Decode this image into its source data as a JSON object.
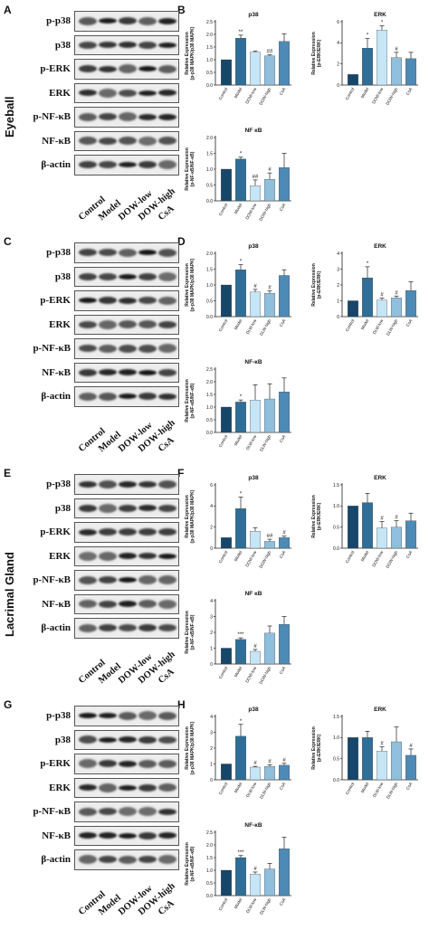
{
  "panels": [
    {
      "blot_letter": "A",
      "chart_letter": "B",
      "side_label": "Eyeball",
      "blot_rows": [
        "p-p38",
        "p38",
        "p-ERK",
        "ERK",
        "p-NF-κB",
        "NF-κB",
        "β-actin"
      ],
      "lanes": [
        "Control",
        "Model",
        "DOW-low",
        "DOW-high",
        "CsA"
      ]
    },
    {
      "blot_letter": "C",
      "chart_letter": "D",
      "side_label": "",
      "blot_rows": [
        "p-p38",
        "p38",
        "p-ERK",
        "ERK",
        "p-NF-κB",
        "NF-κB",
        "β-actin"
      ],
      "lanes": [
        "Control",
        "Model",
        "DOW-low",
        "DOW-high",
        "CsA"
      ]
    },
    {
      "blot_letter": "E",
      "chart_letter": "F",
      "side_label": "Lacrimal Gland",
      "blot_rows": [
        "p-p38",
        "p38",
        "p-ERK",
        "ERK",
        "p-NF-κB",
        "NF-κB",
        "β-actin"
      ],
      "lanes": [
        "Control",
        "Model",
        "DOW-low",
        "DOW-high",
        "CsA"
      ]
    },
    {
      "blot_letter": "G",
      "chart_letter": "H",
      "side_label": "",
      "blot_rows": [
        "p-p38",
        "p38",
        "p-ERK",
        "ERK",
        "p-NF-κB",
        "NF-κB",
        "β-actin"
      ],
      "lanes": [
        "Control",
        "Model",
        "DOW-low",
        "DOW-high",
        "CsA"
      ]
    }
  ],
  "colors": {
    "control": "#16476b",
    "model": "#2f6e96",
    "low": "#c6e5f6",
    "high": "#8fbfdc",
    "csa": "#4d8ab5"
  },
  "chart_data": [
    {
      "type": "bar",
      "panel": "B",
      "title": "p38",
      "categories": [
        "Control",
        "Model",
        "DOW-low",
        "DOW-high",
        "CsA"
      ],
      "values": [
        1.0,
        1.85,
        1.3,
        1.15,
        1.72
      ],
      "errors": [
        0.0,
        0.12,
        0.04,
        0.04,
        0.3
      ],
      "annotations": [
        "",
        "**",
        "",
        "##",
        ""
      ],
      "ylabel": "Relative Expression\n(p-p38 MAPK/p38 MAPK)",
      "ylim": [
        0.0,
        2.5
      ],
      "yticks": [
        0.0,
        0.5,
        1.0,
        1.5,
        2.0,
        2.5
      ]
    },
    {
      "type": "bar",
      "panel": "B",
      "title": "ERK",
      "categories": [
        "Control",
        "Model",
        "DOW-low",
        "DOW-high",
        "CsA"
      ],
      "values": [
        1.0,
        3.5,
        5.2,
        2.6,
        2.5
      ],
      "errors": [
        0.0,
        0.9,
        0.4,
        0.5,
        0.6
      ],
      "annotations": [
        "",
        "*",
        "*",
        "#",
        ""
      ],
      "ylabel": "Relative Expression\n(p-ERK/ERK)",
      "ylim": [
        0,
        6
      ],
      "yticks": [
        0,
        2,
        4,
        6
      ]
    },
    {
      "type": "bar",
      "panel": "B",
      "title": "NF κB",
      "categories": [
        "Control",
        "Model",
        "DOW-low",
        "DOW-high",
        "CsA"
      ],
      "values": [
        1.0,
        1.32,
        0.48,
        0.68,
        1.05
      ],
      "errors": [
        0.0,
        0.06,
        0.18,
        0.2,
        0.45
      ],
      "annotations": [
        "",
        "*",
        "##",
        "#",
        ""
      ],
      "ylabel": "Relative Expression\n(p-NF-κB/NF-κB)",
      "ylim": [
        0.0,
        2.0
      ],
      "yticks": [
        0.0,
        0.5,
        1.0,
        1.5,
        2.0
      ]
    },
    {
      "type": "bar",
      "panel": "D",
      "title": "p38",
      "categories": [
        "Control",
        "Model",
        "DLW-low",
        "DLW-high",
        "CsA"
      ],
      "values": [
        1.0,
        1.48,
        0.78,
        0.74,
        1.3
      ],
      "errors": [
        0.0,
        0.16,
        0.08,
        0.08,
        0.18
      ],
      "annotations": [
        "",
        "*",
        "#",
        "#",
        ""
      ],
      "ylabel": "Relative Expression\n(p-p38 MAPK/p38 MAPK)",
      "ylim": [
        0.0,
        2.0
      ],
      "yticks": [
        0.0,
        0.5,
        1.0,
        1.5,
        2.0
      ]
    },
    {
      "type": "bar",
      "panel": "D",
      "title": "ERK",
      "categories": [
        "Control",
        "Model",
        "DLW-low",
        "DLW-high",
        "CsA"
      ],
      "values": [
        1.0,
        2.45,
        1.05,
        1.18,
        1.65
      ],
      "errors": [
        0.0,
        0.7,
        0.12,
        0.12,
        0.55
      ],
      "annotations": [
        "",
        "*",
        "#",
        "#",
        ""
      ],
      "ylabel": "Relative Expression\n(p-ERK/ERK)",
      "ylim": [
        0,
        4
      ],
      "yticks": [
        0,
        1,
        2,
        3,
        4
      ]
    },
    {
      "type": "bar",
      "panel": "D",
      "title": "NF-κB",
      "categories": [
        "Control",
        "Model",
        "DLW-low",
        "DLW-high",
        "CsA"
      ],
      "values": [
        1.0,
        1.2,
        1.28,
        1.32,
        1.6
      ],
      "errors": [
        0.0,
        0.08,
        0.6,
        0.6,
        0.55
      ],
      "annotations": [
        "",
        "*",
        "",
        "",
        ""
      ],
      "ylabel": "Relative Expression\n(p-NF-κB/NF-κB)",
      "ylim": [
        0.0,
        2.5
      ],
      "yticks": [
        0.0,
        0.5,
        1.0,
        1.5,
        2.0,
        2.5
      ]
    },
    {
      "type": "bar",
      "panel": "F",
      "title": "p38",
      "categories": [
        "Control",
        "Model",
        "DOW-low",
        "DOW-high",
        "CsA"
      ],
      "values": [
        1.0,
        3.75,
        1.6,
        0.65,
        1.0
      ],
      "errors": [
        0.0,
        1.1,
        0.35,
        0.2,
        0.15
      ],
      "annotations": [
        "",
        "*",
        "",
        "##",
        "#"
      ],
      "ylabel": "Relative Expression\n(p-p38 MAPK/p38 MAPK)",
      "ylim": [
        0,
        6
      ],
      "yticks": [
        0,
        2,
        4,
        6
      ]
    },
    {
      "type": "bar",
      "panel": "F",
      "title": "ERK",
      "categories": [
        "Control",
        "Model",
        "DOW-low",
        "DOW-high",
        "CsA"
      ],
      "values": [
        1.0,
        1.08,
        0.48,
        0.5,
        0.65
      ],
      "errors": [
        0.0,
        0.22,
        0.15,
        0.15,
        0.18
      ],
      "annotations": [
        "",
        "",
        "#",
        "#",
        ""
      ],
      "ylabel": "Relative Expression\n(p-ERK/ERK)",
      "ylim": [
        0.0,
        1.5
      ],
      "yticks": [
        0.0,
        0.5,
        1.0,
        1.5
      ]
    },
    {
      "type": "bar",
      "panel": "F",
      "title": "NF κB",
      "categories": [
        "Control",
        "Model",
        "DOW-low",
        "DOW-high",
        "CsA"
      ],
      "values": [
        1.0,
        1.55,
        0.8,
        1.95,
        2.5
      ],
      "errors": [
        0.0,
        0.1,
        0.12,
        0.45,
        0.5
      ],
      "annotations": [
        "",
        "***",
        "#",
        "",
        ""
      ],
      "ylabel": "Relative Expression\n(p-NF-κB/NF-κB)",
      "ylim": [
        0,
        4
      ],
      "yticks": [
        0,
        1,
        2,
        3,
        4
      ]
    },
    {
      "type": "bar",
      "panel": "H",
      "title": "p38",
      "categories": [
        "Control",
        "Model",
        "DLW-low",
        "DLW-high",
        "CsA"
      ],
      "values": [
        1.0,
        2.75,
        0.8,
        0.85,
        0.92
      ],
      "errors": [
        0.0,
        0.75,
        0.05,
        0.1,
        0.12
      ],
      "annotations": [
        "",
        "*",
        "#",
        "#",
        "#"
      ],
      "ylabel": "Relative Expression\n(p-p38 MAPK/p38 MAPK)",
      "ylim": [
        0,
        4
      ],
      "yticks": [
        0,
        1,
        2,
        3,
        4
      ]
    },
    {
      "type": "bar",
      "panel": "H",
      "title": "ERK",
      "categories": [
        "Control",
        "Model",
        "DLW-low",
        "DLW-high",
        "CsA"
      ],
      "values": [
        1.0,
        1.0,
        0.68,
        0.9,
        0.58
      ],
      "errors": [
        0.0,
        0.15,
        0.1,
        0.35,
        0.15
      ],
      "annotations": [
        "",
        "",
        "#",
        "",
        "#"
      ],
      "ylabel": "Relative Expression\n(p-ERK/ERK)",
      "ylim": [
        0.0,
        1.5
      ],
      "yticks": [
        0.0,
        0.5,
        1.0,
        1.5
      ]
    },
    {
      "type": "bar",
      "panel": "H",
      "title": "NF-κB",
      "categories": [
        "Control",
        "Model",
        "DLW-low",
        "DLW-high",
        "CsA"
      ],
      "values": [
        1.0,
        1.5,
        0.85,
        1.05,
        1.85
      ],
      "errors": [
        0.0,
        0.08,
        0.08,
        0.22,
        0.45
      ],
      "annotations": [
        "",
        "***",
        "#",
        "",
        ""
      ],
      "ylabel": "Relative Expression\n(p-NF-κB/NF-κB)",
      "ylim": [
        0.0,
        2.5
      ],
      "yticks": [
        0.0,
        0.5,
        1.0,
        1.5,
        2.0,
        2.5
      ]
    }
  ]
}
